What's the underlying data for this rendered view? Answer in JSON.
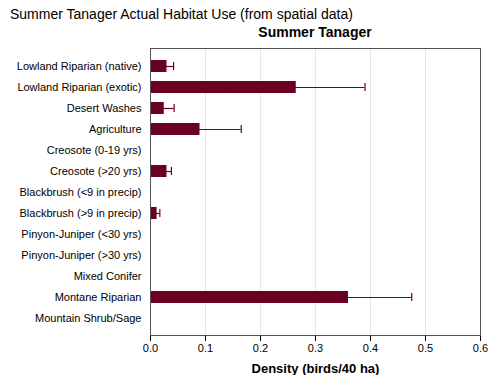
{
  "chart_data": {
    "type": "bar",
    "orientation": "horizontal",
    "title": "Summer Tanager Actual Habitat Use (from spatial data)",
    "subtitle": "Summer Tanager",
    "xlabel": "Density (birds/40 ha)",
    "categories": [
      "Lowland Riparian (native)",
      "Lowland Riparian (exotic)",
      "Desert Washes",
      "Agriculture",
      "Creosote (0-19 yrs)",
      "Creosote (>20 yrs)",
      "Blackbrush (<9 in precip)",
      "Blackbrush (>9 in precip)",
      "Pinyon-Juniper (<30 yrs)",
      "Pinyon-Juniper (>30 yrs)",
      "Mixed Conifer",
      "Montane Riparian",
      "Mountain Shrub/Sage"
    ],
    "values": [
      0.03,
      0.265,
      0.025,
      0.09,
      0.0,
      0.03,
      0.0,
      0.012,
      0.0,
      0.0,
      0.0,
      0.36,
      0.0
    ],
    "errors": [
      0.012,
      0.125,
      0.018,
      0.075,
      0.0,
      0.008,
      0.0,
      0.005,
      0.0,
      0.0,
      0.0,
      0.115,
      0.0
    ],
    "color": "#6B0020",
    "xlim": [
      0,
      0.6
    ],
    "xticks": [
      {
        "value": 0.0,
        "label": "0.0"
      },
      0.1,
      0.2,
      0.3,
      0.4,
      0.5,
      0.6
    ],
    "grid": true
  }
}
